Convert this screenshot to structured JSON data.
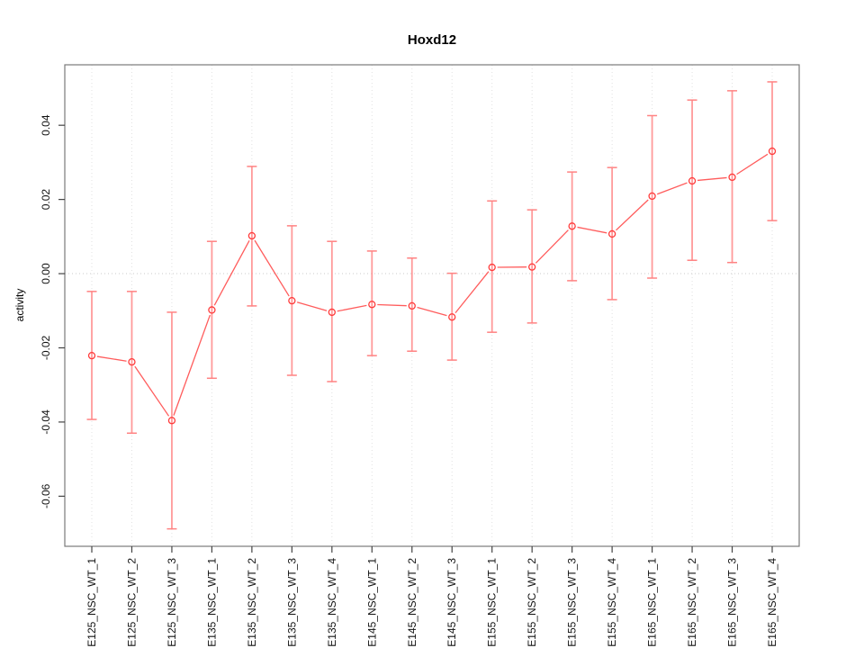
{
  "title": "Hoxd12",
  "ylabel": "activity",
  "colors": {
    "marker": "#ff3b3b",
    "line": "#ff5c5c",
    "errorbar": "#ff9a9a",
    "errorbar_cap": "#ff8282",
    "grid": "#e1e1e1",
    "zero_line": "#c9c9c9",
    "border": "#7a7a7a",
    "tick": "#444444",
    "text": "#111111"
  },
  "chart_data": {
    "type": "line",
    "title": "Hoxd12",
    "xlabel": "",
    "ylabel": "activity",
    "legend": "none",
    "grid": "vertical dotted gridlines at each category; dotted horizontal line at y=0",
    "marker": "open-circle",
    "categories": [
      "E125_NSC_WT_1",
      "E125_NSC_WT_2",
      "E125_NSC_WT_3",
      "E135_NSC_WT_1",
      "E135_NSC_WT_2",
      "E135_NSC_WT_3",
      "E135_NSC_WT_4",
      "E145_NSC_WT_1",
      "E145_NSC_WT_2",
      "E145_NSC_WT_3",
      "E155_NSC_WT_1",
      "E155_NSC_WT_2",
      "E155_NSC_WT_3",
      "E155_NSC_WT_4",
      "E165_NSC_WT_1",
      "E165_NSC_WT_2",
      "E165_NSC_WT_3",
      "E165_NSC_WT_4"
    ],
    "series": [
      {
        "name": "activity",
        "values": [
          -0.0221,
          -0.0238,
          -0.0396,
          -0.0098,
          0.0102,
          -0.0073,
          -0.0104,
          -0.0083,
          -0.0087,
          -0.0117,
          0.0017,
          0.0018,
          0.0128,
          0.0107,
          0.0209,
          0.025,
          0.026,
          0.033
        ],
        "ci_low": [
          -0.0393,
          -0.043,
          -0.0688,
          -0.0282,
          -0.0087,
          -0.0274,
          -0.0291,
          -0.0221,
          -0.0209,
          -0.0233,
          -0.0158,
          -0.0133,
          -0.0019,
          -0.007,
          -0.0012,
          0.0036,
          0.003,
          0.0143
        ],
        "ci_high": [
          -0.0048,
          -0.0048,
          -0.0104,
          0.0087,
          0.0289,
          0.0129,
          0.0087,
          0.0061,
          0.0042,
          0.0001,
          0.0196,
          0.0172,
          0.0274,
          0.0286,
          0.0426,
          0.0468,
          0.0493,
          0.0517
        ]
      }
    ],
    "ylim": [
      -0.0735,
      0.0563
    ],
    "ytick_values": [
      -0.06,
      -0.04,
      -0.02,
      0.0,
      0.02,
      0.04
    ],
    "ytick_labels": [
      "-0.06",
      "-0.04",
      "-0.02",
      "0.00",
      "0.02",
      "0.04"
    ]
  }
}
